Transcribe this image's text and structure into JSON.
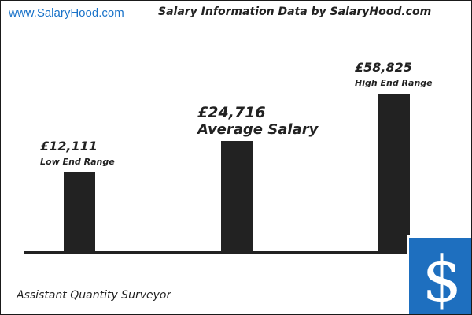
{
  "header": {
    "site": "www.SalaryHood.com",
    "title": "Salary Information Data by SalaryHood.com"
  },
  "job_title": "Assistant Quantity Surveyor",
  "colors": {
    "bar": "#222222",
    "baseline": "#222222",
    "badge": "#1e6fbf",
    "site_link": "#1a73c9"
  },
  "icons": {
    "badge": "dollar-sign-icon"
  },
  "chart_data": {
    "type": "bar",
    "categories": [
      "Low End Range",
      "Average Salary",
      "High End Range"
    ],
    "values": [
      12111,
      24716,
      58825
    ],
    "value_labels": [
      "£12,111",
      "£24,716",
      "£58,825"
    ],
    "title": "Salary Information Data by SalaryHood.com",
    "xlabel": "",
    "ylabel": "",
    "grid": false,
    "legend": "none"
  }
}
